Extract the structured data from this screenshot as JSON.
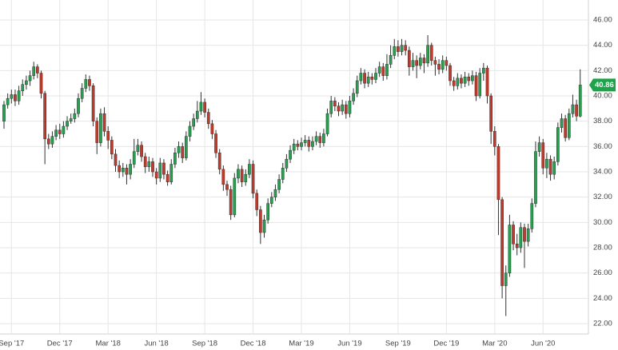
{
  "chart_data": {
    "type": "candlestick",
    "categories": [
      null,
      null,
      "Sep '17",
      null,
      null,
      null,
      null,
      null,
      null,
      null,
      null,
      null,
      null,
      null,
      null,
      "Dec '17",
      null,
      null,
      null,
      null,
      null,
      null,
      null,
      null,
      null,
      null,
      null,
      null,
      "Mar '18",
      null,
      null,
      null,
      null,
      null,
      null,
      null,
      null,
      null,
      null,
      null,
      null,
      "Jun '18",
      null,
      null,
      null,
      null,
      null,
      null,
      null,
      null,
      null,
      null,
      null,
      null,
      "Sep '18",
      null,
      null,
      null,
      null,
      null,
      null,
      null,
      null,
      null,
      null,
      null,
      null,
      "Dec '18",
      null,
      null,
      null,
      null,
      null,
      null,
      null,
      null,
      null,
      null,
      null,
      null,
      "Mar '19",
      null,
      null,
      null,
      null,
      null,
      null,
      null,
      null,
      null,
      null,
      null,
      null,
      "Jun '19",
      null,
      null,
      null,
      null,
      null,
      null,
      null,
      null,
      null,
      null,
      null,
      null,
      "Sep '19",
      null,
      null,
      null,
      null,
      null,
      null,
      null,
      null,
      null,
      null,
      null,
      null,
      "Dec '19",
      null,
      null,
      null,
      null,
      null,
      null,
      null,
      null,
      null,
      null,
      null,
      null,
      "Mar '20",
      null,
      null,
      null,
      null,
      null,
      null,
      null,
      null,
      null,
      null,
      null,
      null,
      "Jun '20",
      null,
      null,
      null,
      null,
      null,
      null,
      null,
      null,
      null,
      null
    ],
    "open": [
      38.0,
      39.3,
      39.8,
      40.1,
      39.6,
      40.4,
      40.9,
      41.2,
      41.6,
      42.3,
      41.8,
      40.2,
      36.6,
      36.2,
      36.8,
      37.3,
      37.0,
      37.6,
      38.0,
      38.2,
      38.6,
      39.8,
      40.6,
      41.3,
      40.8,
      38.0,
      36.3,
      38.6,
      37.2,
      36.5,
      35.4,
      34.5,
      34.0,
      34.3,
      33.8,
      34.6,
      35.6,
      36.1,
      35.2,
      34.4,
      34.8,
      34.0,
      33.5,
      34.7,
      33.8,
      33.2,
      34.6,
      35.5,
      36.0,
      35.1,
      36.8,
      37.6,
      38.2,
      38.8,
      39.5,
      38.7,
      37.8,
      37.0,
      35.5,
      34.2,
      33.0,
      32.6,
      30.6,
      33.5,
      34.2,
      33.2,
      33.8,
      34.6,
      32.3,
      31.0,
      29.2,
      30.2,
      31.5,
      32.0,
      32.6,
      33.4,
      34.3,
      35.0,
      35.7,
      36.2,
      36.0,
      36.3,
      36.5,
      36.0,
      36.4,
      36.8,
      36.3,
      37.0,
      38.6,
      39.6,
      39.2,
      38.8,
      39.3,
      38.6,
      39.6,
      40.2,
      41.2,
      41.8,
      41.0,
      41.5,
      41.3,
      41.8,
      42.3,
      41.6,
      42.5,
      43.2,
      43.9,
      43.5,
      44.0,
      43.6,
      42.3,
      42.8,
      42.4,
      43.0,
      42.6,
      44.0,
      42.8,
      42.5,
      42.1,
      42.8,
      42.4,
      41.2,
      40.8,
      41.4,
      41.0,
      41.5,
      41.2,
      41.6,
      40.0,
      41.8,
      42.2,
      40.0,
      37.2,
      36.0,
      31.8,
      25.0,
      26.0,
      29.8,
      28.3,
      28.0,
      29.6,
      28.5,
      29.5,
      31.5,
      35.6,
      36.3,
      34.3,
      35.0,
      33.8,
      34.8,
      37.5,
      38.2,
      36.7,
      38.6,
      39.3,
      38.4
    ],
    "high": [
      39.6,
      40.2,
      40.5,
      40.5,
      40.8,
      41.3,
      41.6,
      42.0,
      42.7,
      42.5,
      42.0,
      40.4,
      37.0,
      37.2,
      37.7,
      37.8,
      38.0,
      38.4,
      38.6,
      39.0,
      40.2,
      41.0,
      41.7,
      41.6,
      41.0,
      38.3,
      39.0,
      39.1,
      37.6,
      36.8,
      35.8,
      34.9,
      34.7,
      34.6,
      35.0,
      36.6,
      36.6,
      36.4,
      35.5,
      35.2,
      35.1,
      34.3,
      35.1,
      35.0,
      34.1,
      35.0,
      35.9,
      36.4,
      36.3,
      37.2,
      38.0,
      38.6,
      39.6,
      40.3,
      39.8,
      39.0,
      38.1,
      37.3,
      35.8,
      34.5,
      33.3,
      32.9,
      33.9,
      34.6,
      34.5,
      34.2,
      35.0,
      34.9,
      32.6,
      31.3,
      30.6,
      31.9,
      32.4,
      33.0,
      33.8,
      34.7,
      35.4,
      36.1,
      36.6,
      36.5,
      36.7,
      36.9,
      36.8,
      36.8,
      37.2,
      37.1,
      37.4,
      39.0,
      40.0,
      39.9,
      39.5,
      39.7,
      39.6,
      40.0,
      40.6,
      41.6,
      42.2,
      42.1,
      41.9,
      41.8,
      42.2,
      42.7,
      42.6,
      43.3,
      44.0,
      44.5,
      44.4,
      44.5,
      44.4,
      43.9,
      43.4,
      43.2,
      43.4,
      43.3,
      44.8,
      44.2,
      43.1,
      42.9,
      43.2,
      43.1,
      42.6,
      41.5,
      41.8,
      41.7,
      41.9,
      41.8,
      42.0,
      41.9,
      42.2,
      42.6,
      42.4,
      40.2,
      37.6,
      36.2,
      32.0,
      26.6,
      30.6,
      30.1,
      29.1,
      30.0,
      29.9,
      29.9,
      31.9,
      36.4,
      36.8,
      36.6,
      35.5,
      35.3,
      35.2,
      37.9,
      38.6,
      38.5,
      39.0,
      40.1,
      39.7,
      42.1
    ],
    "low": [
      37.4,
      39.0,
      39.4,
      39.2,
      39.3,
      40.0,
      40.5,
      40.8,
      41.3,
      41.4,
      39.8,
      34.6,
      35.8,
      35.9,
      36.5,
      36.6,
      36.7,
      37.3,
      37.8,
      37.9,
      38.3,
      39.5,
      40.3,
      40.4,
      37.6,
      35.4,
      36.0,
      36.8,
      35.8,
      35.0,
      34.0,
      33.5,
      33.6,
      33.0,
      33.4,
      34.3,
      35.3,
      34.8,
      33.9,
      34.0,
      33.6,
      33.0,
      33.2,
      33.4,
      32.9,
      33.0,
      34.3,
      35.1,
      34.7,
      34.9,
      36.4,
      37.3,
      37.9,
      38.5,
      38.3,
      37.4,
      36.6,
      35.1,
      33.8,
      32.5,
      32.1,
      30.2,
      30.4,
      33.1,
      32.8,
      32.9,
      33.5,
      31.9,
      30.5,
      28.3,
      28.8,
      29.9,
      31.2,
      31.7,
      32.3,
      33.1,
      34.0,
      34.7,
      35.4,
      35.7,
      35.7,
      36.0,
      35.6,
      35.7,
      36.1,
      35.9,
      36.0,
      36.8,
      38.3,
      38.8,
      38.4,
      38.5,
      38.2,
      38.3,
      39.3,
      39.9,
      40.9,
      40.6,
      40.7,
      40.9,
      41.0,
      41.5,
      41.2,
      41.3,
      42.2,
      42.9,
      43.1,
      43.2,
      43.2,
      41.6,
      42.0,
      41.4,
      42.1,
      41.8,
      42.3,
      42.4,
      41.6,
      41.7,
      41.8,
      42.0,
      40.8,
      40.4,
      40.5,
      40.6,
      40.7,
      40.8,
      40.9,
      39.6,
      39.8,
      41.2,
      39.4,
      36.2,
      35.3,
      29.0,
      24.0,
      22.6,
      25.7,
      27.8,
      27.4,
      27.6,
      26.4,
      28.1,
      29.2,
      31.2,
      35.2,
      33.8,
      33.5,
      33.3,
      33.4,
      34.5,
      37.1,
      36.4,
      36.5,
      38.3,
      38.0,
      38.3
    ],
    "close": [
      39.3,
      39.8,
      40.1,
      39.6,
      40.4,
      40.9,
      41.2,
      41.6,
      42.3,
      41.8,
      40.2,
      36.6,
      36.2,
      36.8,
      37.3,
      37.0,
      37.6,
      38.0,
      38.2,
      38.6,
      39.8,
      40.6,
      41.3,
      40.8,
      38.0,
      36.3,
      38.6,
      37.2,
      36.5,
      35.4,
      34.5,
      34.0,
      34.3,
      33.8,
      34.6,
      35.6,
      36.1,
      35.2,
      34.4,
      34.8,
      34.0,
      33.5,
      34.7,
      33.8,
      33.2,
      34.6,
      35.5,
      36.0,
      35.1,
      36.8,
      37.6,
      38.2,
      38.8,
      39.5,
      38.7,
      37.8,
      37.0,
      35.5,
      34.2,
      33.0,
      32.6,
      30.6,
      33.5,
      34.2,
      33.2,
      33.8,
      34.6,
      32.3,
      31.0,
      29.2,
      30.2,
      31.5,
      32.0,
      32.6,
      33.4,
      34.3,
      35.0,
      35.7,
      36.2,
      36.0,
      36.3,
      36.5,
      36.0,
      36.4,
      36.8,
      36.3,
      37.0,
      38.6,
      39.6,
      39.2,
      38.8,
      39.3,
      38.6,
      39.6,
      40.2,
      41.2,
      41.8,
      41.0,
      41.5,
      41.3,
      41.8,
      42.3,
      41.6,
      42.5,
      43.2,
      43.9,
      43.5,
      44.0,
      43.6,
      42.3,
      42.8,
      42.4,
      43.0,
      42.6,
      44.0,
      42.8,
      42.5,
      42.1,
      42.8,
      42.4,
      41.2,
      40.8,
      41.4,
      41.0,
      41.5,
      41.2,
      41.6,
      40.0,
      41.8,
      42.2,
      40.0,
      37.2,
      36.0,
      31.8,
      25.0,
      26.0,
      29.8,
      28.3,
      28.0,
      29.6,
      28.5,
      29.5,
      31.5,
      35.6,
      36.3,
      34.3,
      35.0,
      33.8,
      34.8,
      37.5,
      38.2,
      36.7,
      38.6,
      39.3,
      38.4,
      40.86
    ],
    "up_color": "#27a150",
    "down_color": "#c23a2b",
    "last_color": "#1ea34a",
    "ylim": [
      21.18,
      47.58
    ],
    "yticks": [
      {
        "value": 22,
        "label": "22.00"
      },
      {
        "value": 24,
        "label": "24.00"
      },
      {
        "value": 26,
        "label": "26.00"
      },
      {
        "value": 28,
        "label": "28.00"
      },
      {
        "value": 30,
        "label": "30.00"
      },
      {
        "value": 32,
        "label": "32.00"
      },
      {
        "value": 34,
        "label": "34.00"
      },
      {
        "value": 36,
        "label": "36.00"
      },
      {
        "value": 38,
        "label": "38.00"
      },
      {
        "value": 40,
        "label": "40.00"
      },
      {
        "value": 42,
        "label": "42.00"
      },
      {
        "value": 44,
        "label": "44.00"
      },
      {
        "value": 46,
        "label": "46.00"
      }
    ],
    "grid": true
  }
}
